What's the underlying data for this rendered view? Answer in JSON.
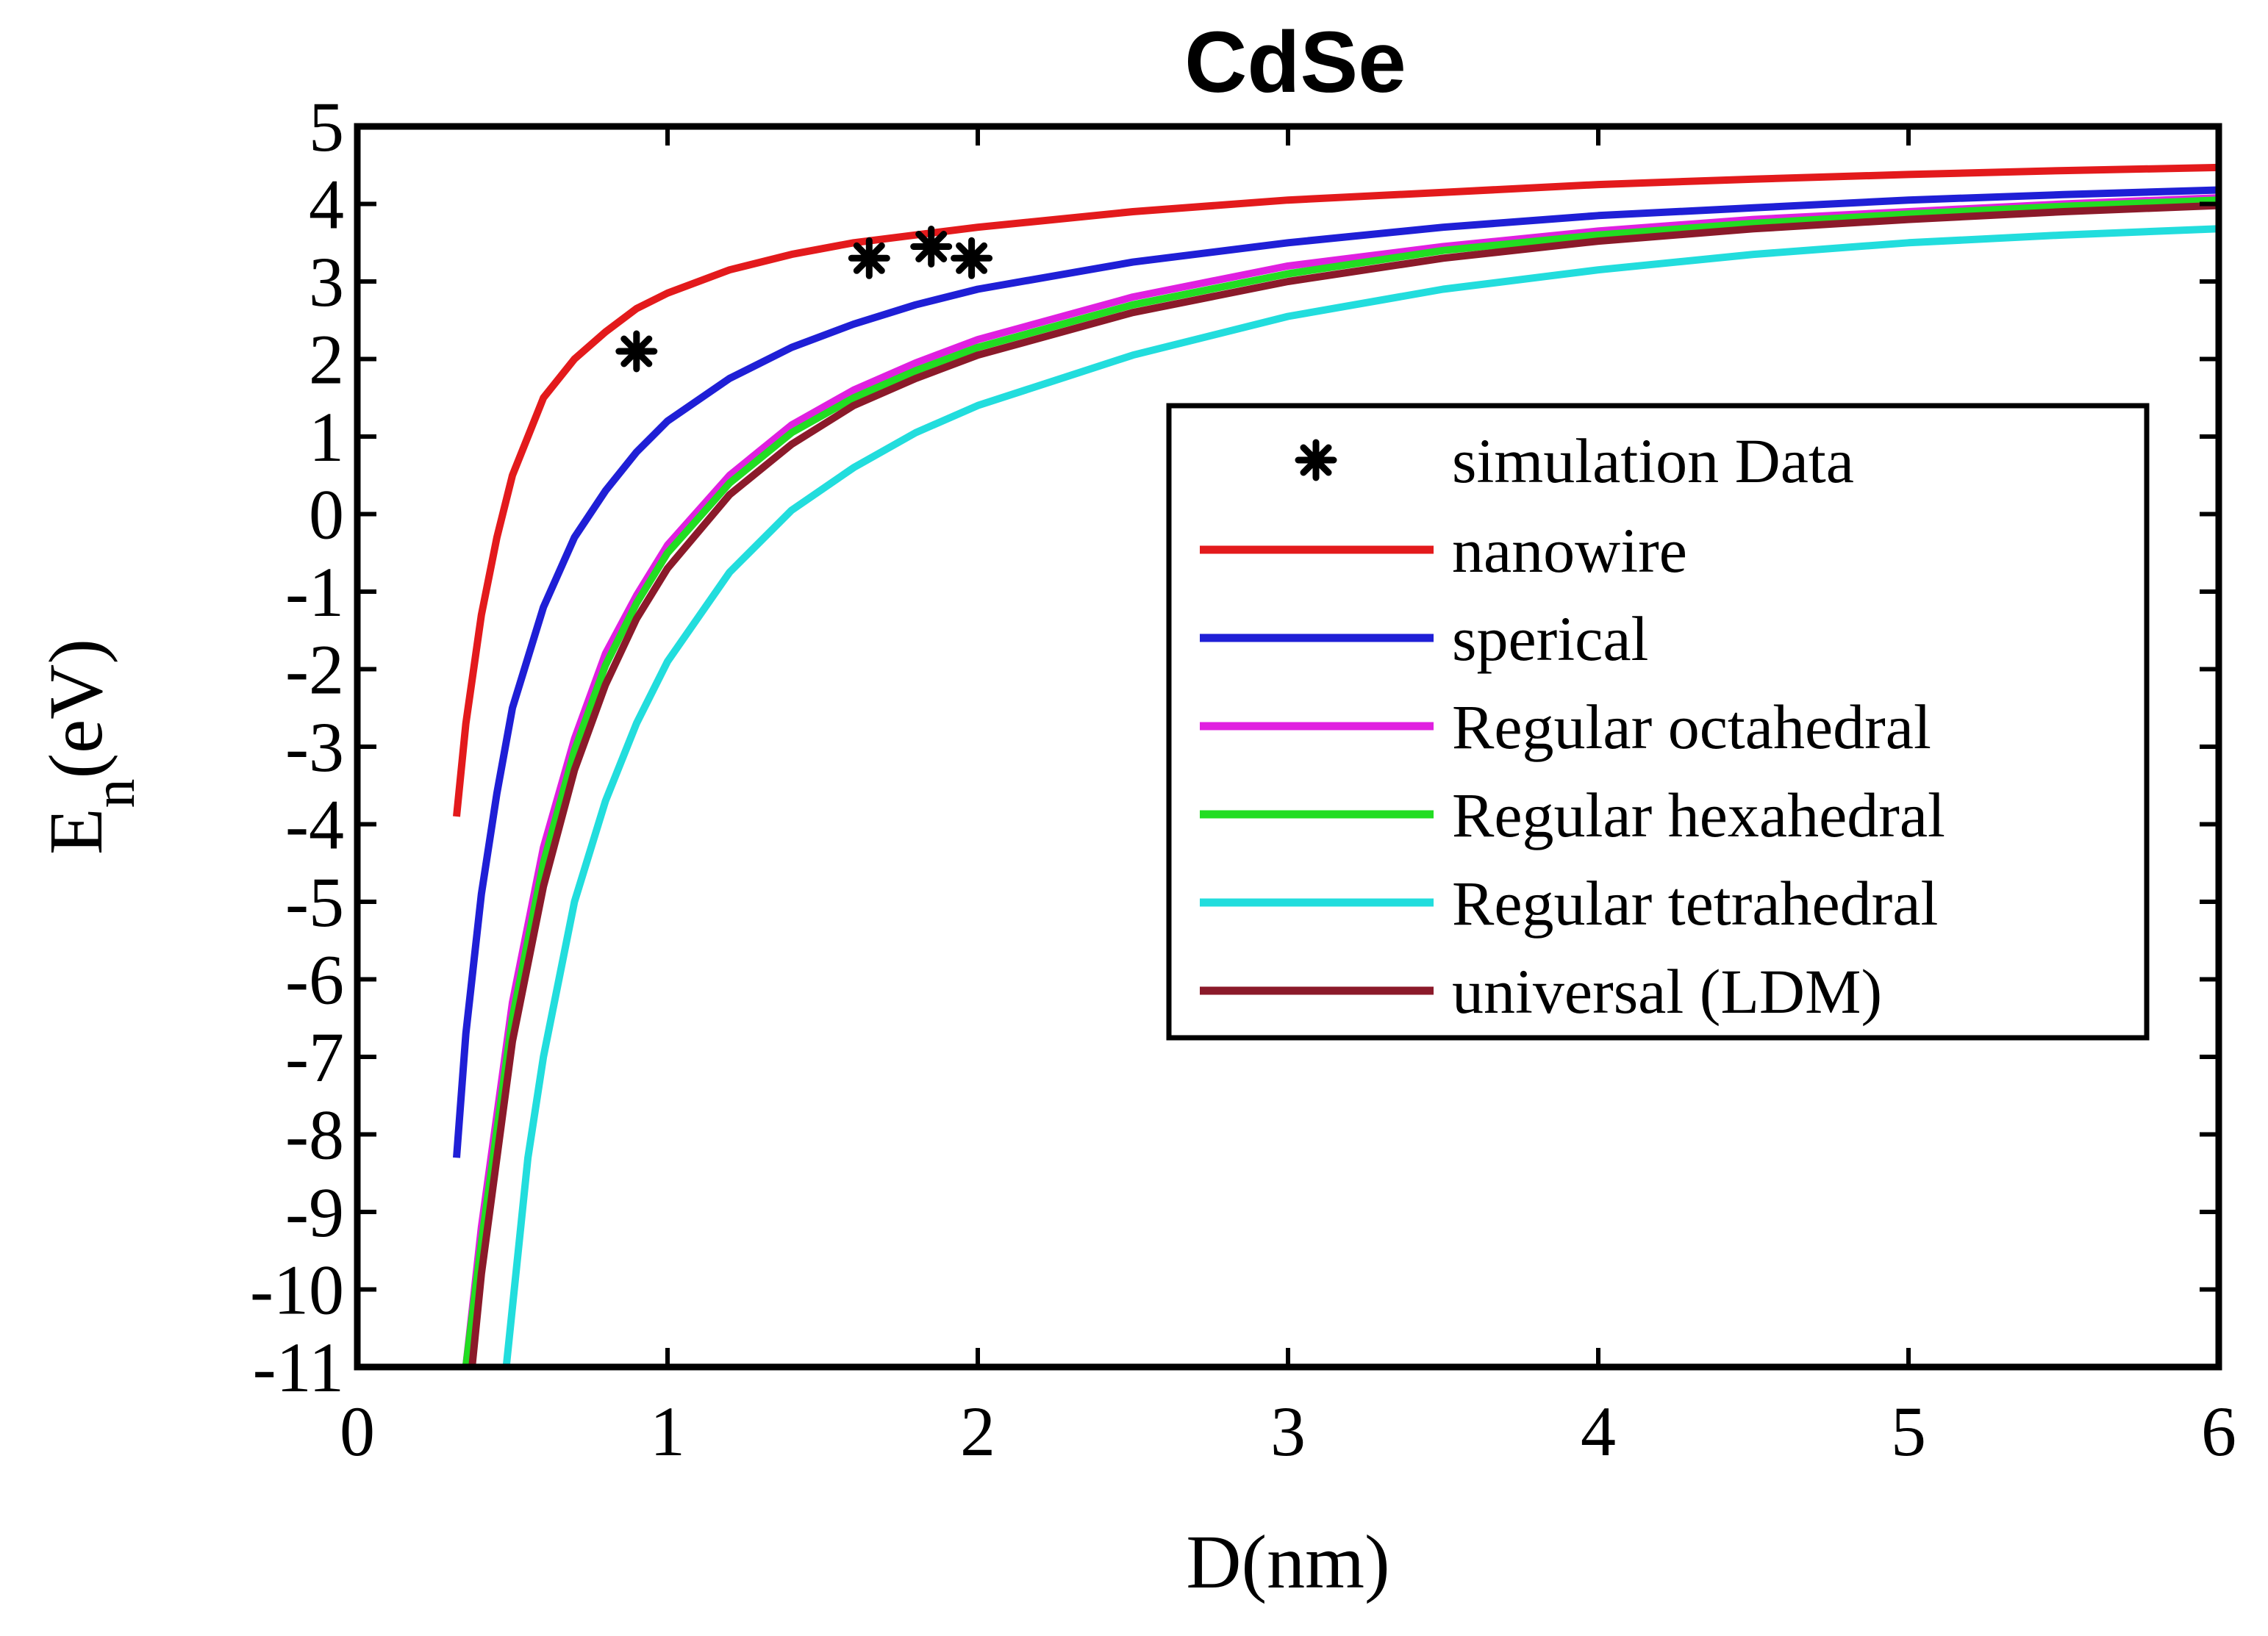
{
  "chart_data": {
    "type": "line",
    "title": "CdSe",
    "xlabel": "D(nm)",
    "ylabel": {
      "main": "E",
      "sub": "n",
      "unit": "(eV)"
    },
    "xlim": [
      0,
      6
    ],
    "ylim": [
      -11,
      5
    ],
    "xticks": [
      0,
      1,
      2,
      3,
      4,
      5,
      6
    ],
    "yticks": [
      5,
      4,
      3,
      2,
      1,
      0,
      -1,
      -2,
      -3,
      -4,
      -5,
      -6,
      -7,
      -8,
      -9,
      -10,
      -11
    ],
    "grid": false,
    "legend_position": "center-right",
    "series": [
      {
        "name": "nanowire",
        "color": "#e31a1c",
        "x": [
          0.32,
          0.35,
          0.4,
          0.45,
          0.5,
          0.6,
          0.7,
          0.8,
          0.9,
          1.0,
          1.2,
          1.4,
          1.6,
          1.8,
          2.0,
          2.5,
          3.0,
          3.5,
          4.0,
          4.5,
          5.0,
          5.5,
          6.0
        ],
        "y": [
          -3.9,
          -2.7,
          -1.3,
          -0.3,
          0.5,
          1.5,
          2.0,
          2.35,
          2.65,
          2.85,
          3.15,
          3.35,
          3.5,
          3.6,
          3.7,
          3.9,
          4.05,
          4.15,
          4.25,
          4.32,
          4.38,
          4.43,
          4.47
        ]
      },
      {
        "name": "sperical",
        "color": "#1f1fd6",
        "x": [
          0.32,
          0.35,
          0.4,
          0.45,
          0.5,
          0.6,
          0.7,
          0.8,
          0.9,
          1.0,
          1.2,
          1.4,
          1.6,
          1.8,
          2.0,
          2.5,
          3.0,
          3.5,
          4.0,
          4.5,
          5.0,
          5.5,
          6.0
        ],
        "y": [
          -8.3,
          -6.7,
          -4.9,
          -3.6,
          -2.5,
          -1.2,
          -0.3,
          0.3,
          0.8,
          1.2,
          1.75,
          2.15,
          2.45,
          2.7,
          2.9,
          3.25,
          3.5,
          3.7,
          3.85,
          3.95,
          4.05,
          4.12,
          4.18
        ]
      },
      {
        "name": "Regular octahedral",
        "color": "#e020e0",
        "x": [
          0.35,
          0.4,
          0.5,
          0.6,
          0.7,
          0.8,
          0.9,
          1.0,
          1.2,
          1.4,
          1.6,
          1.8,
          2.0,
          2.5,
          3.0,
          3.5,
          4.0,
          4.5,
          5.0,
          5.5,
          6.0
        ],
        "y": [
          -11.0,
          -9.2,
          -6.3,
          -4.3,
          -2.9,
          -1.8,
          -1.05,
          -0.4,
          0.5,
          1.15,
          1.6,
          1.95,
          2.25,
          2.8,
          3.2,
          3.45,
          3.65,
          3.8,
          3.9,
          4.0,
          4.08
        ]
      },
      {
        "name": "Regular hexahedral",
        "color": "#22dd22",
        "x": [
          0.35,
          0.4,
          0.5,
          0.6,
          0.7,
          0.8,
          0.9,
          1.0,
          1.2,
          1.4,
          1.6,
          1.8,
          2.0,
          2.5,
          3.0,
          3.5,
          4.0,
          4.5,
          5.0,
          5.5,
          6.0
        ],
        "y": [
          -11.0,
          -9.4,
          -6.5,
          -4.5,
          -3.05,
          -1.95,
          -1.15,
          -0.5,
          0.4,
          1.05,
          1.5,
          1.85,
          2.15,
          2.7,
          3.1,
          3.4,
          3.6,
          3.75,
          3.87,
          3.97,
          4.05
        ]
      },
      {
        "name": "Regular tetrahedral",
        "color": "#22dddd",
        "x": [
          0.48,
          0.55,
          0.6,
          0.7,
          0.8,
          0.9,
          1.0,
          1.2,
          1.4,
          1.6,
          1.8,
          2.0,
          2.5,
          3.0,
          3.5,
          4.0,
          4.5,
          5.0,
          5.5,
          6.0
        ],
        "y": [
          -11.0,
          -8.3,
          -7.0,
          -5.0,
          -3.7,
          -2.7,
          -1.9,
          -0.75,
          0.05,
          0.6,
          1.05,
          1.4,
          2.05,
          2.55,
          2.9,
          3.15,
          3.35,
          3.5,
          3.6,
          3.68
        ]
      },
      {
        "name": "universal (LDM)",
        "color": "#8b1a2a",
        "x": [
          0.37,
          0.4,
          0.5,
          0.6,
          0.7,
          0.8,
          0.9,
          1.0,
          1.2,
          1.4,
          1.6,
          1.8,
          2.0,
          2.5,
          3.0,
          3.5,
          4.0,
          4.5,
          5.0,
          5.5,
          6.0
        ],
        "y": [
          -11.0,
          -9.8,
          -6.8,
          -4.8,
          -3.3,
          -2.2,
          -1.35,
          -0.7,
          0.25,
          0.9,
          1.4,
          1.75,
          2.05,
          2.6,
          3.0,
          3.3,
          3.52,
          3.68,
          3.8,
          3.9,
          3.98
        ]
      }
    ],
    "scatter": {
      "name": "simulation Data",
      "color": "#000000",
      "marker": "asterisk",
      "x": [
        0.9,
        1.65,
        1.85,
        1.98
      ],
      "y": [
        2.1,
        3.3,
        3.45,
        3.3
      ]
    }
  }
}
